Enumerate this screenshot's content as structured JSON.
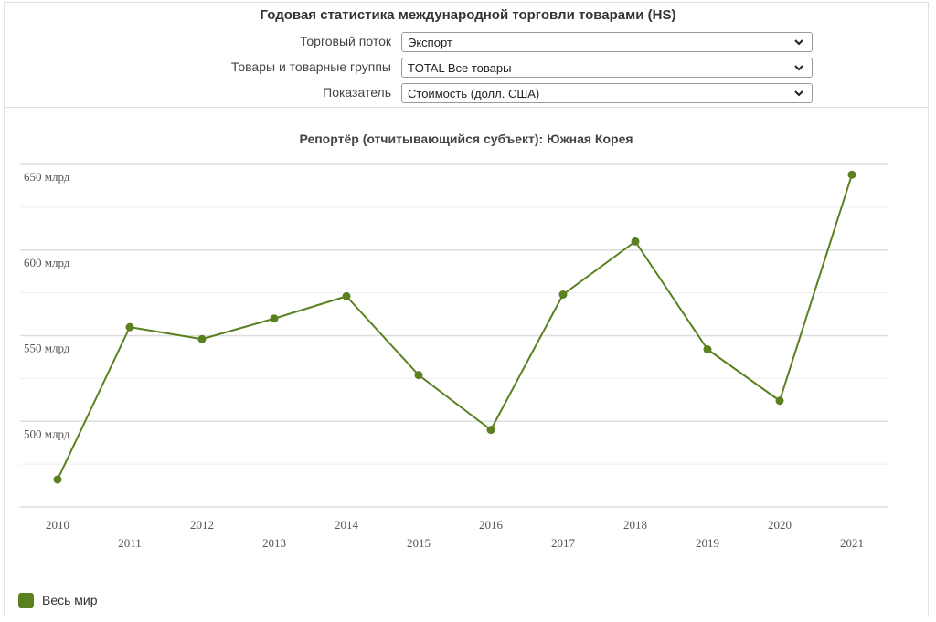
{
  "header": {
    "title": "Годовая статистика международной торговли товарами (HS)"
  },
  "filters": [
    {
      "label": "Торговый поток",
      "value": "Экспорт"
    },
    {
      "label": "Товары и товарные группы",
      "value": "TOTAL Все товары"
    },
    {
      "label": "Показатель",
      "value": "Стоимость (долл. США)"
    }
  ],
  "colors": {
    "series": "#5a8020",
    "grid_major": "#dddddd",
    "grid_minor": "#efefef"
  },
  "chart_data": {
    "type": "line",
    "title": "Репортёр (отчитывающийся субъект): Южная Корея",
    "xlabel": "",
    "ylabel": "",
    "x": [
      "2010",
      "2011",
      "2012",
      "2013",
      "2014",
      "2015",
      "2016",
      "2017",
      "2018",
      "2019",
      "2020",
      "2021"
    ],
    "series": [
      {
        "name": "Весь мир",
        "values": [
          466,
          555,
          548,
          560,
          573,
          527,
          495,
          574,
          605,
          542,
          512,
          644
        ]
      }
    ],
    "ylim": [
      450,
      650
    ],
    "yticks": [
      500,
      550,
      600,
      650
    ],
    "ytick_labels": [
      "500 млрд",
      "550 млрд",
      "600 млрд",
      "650 млрд"
    ],
    "grid": true,
    "legend": "bottom-left"
  }
}
